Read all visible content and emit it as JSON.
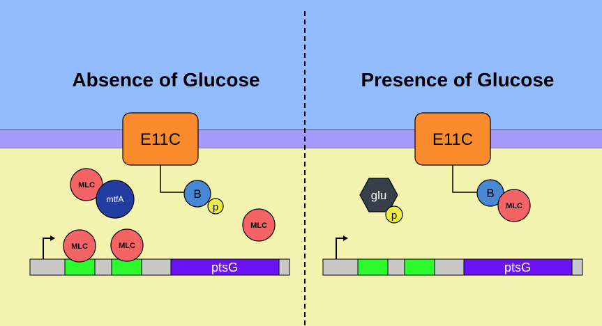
{
  "colors": {
    "outside": "#93bcff",
    "membrane": "#a899ff",
    "cytoplasm": "#f4f4b0",
    "e11c": "#fb8c2d",
    "mlc": "#f46464",
    "mtfa": "#233c9f",
    "b_protein": "#4787d4",
    "phosphate": "#eded42",
    "glucose": "#363f4a",
    "promoter_region": "#2dfb2d",
    "gene_body": "#6b14f1",
    "dna": "#c8c8c8"
  },
  "left_panel": {
    "title": "Absence of Glucose",
    "transporter": "E11C",
    "b_protein": "B",
    "phosphate": "p",
    "regulator": "mtfA",
    "free_mlc": [
      "MLC",
      "MLC"
    ],
    "bound_mlc": [
      "MLC",
      "MLC"
    ],
    "gene": "ptsG"
  },
  "right_panel": {
    "title": "Presence of Glucose",
    "transporter": "E11C",
    "b_protein": "B",
    "b_bound_mlc": "MLC",
    "glucose": "glu",
    "phosphate": "p",
    "gene": "ptsG"
  }
}
